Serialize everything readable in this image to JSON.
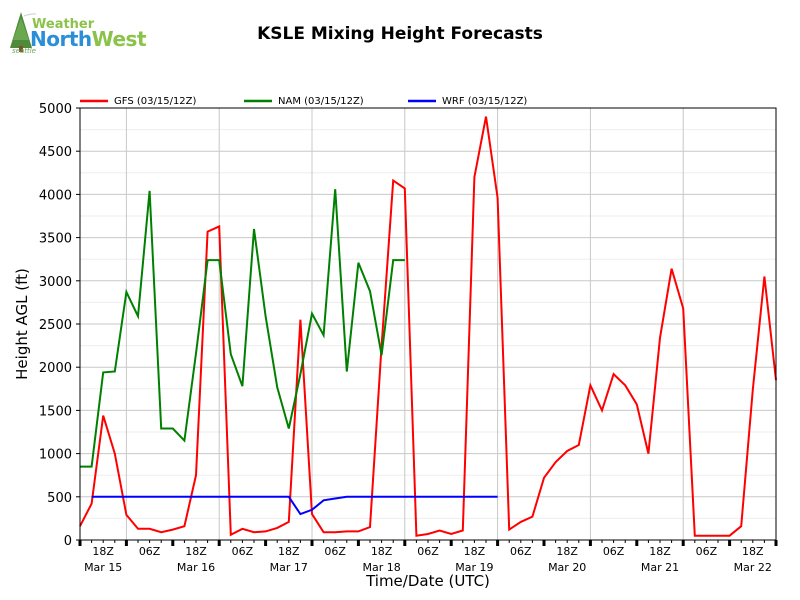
{
  "logo": {
    "word1": "Weather",
    "word2a": "North",
    "word2b": "West",
    "tagline": "seattle"
  },
  "chart_data": {
    "type": "line",
    "title": "KSLE Mixing Height Forecasts",
    "xlabel": "Time/Date (UTC)",
    "ylabel": "Height AGL (ft)",
    "ylim": [
      0,
      5000
    ],
    "yticks": [
      0,
      500,
      1000,
      1500,
      2000,
      2500,
      3000,
      3500,
      4000,
      4500,
      5000
    ],
    "xlim": [
      12,
      192
    ],
    "hour_ticks": [
      {
        "x": 18,
        "label": "18Z"
      },
      {
        "x": 30,
        "label": "06Z"
      },
      {
        "x": 42,
        "label": "18Z"
      },
      {
        "x": 54,
        "label": "06Z"
      },
      {
        "x": 66,
        "label": "18Z"
      },
      {
        "x": 78,
        "label": "06Z"
      },
      {
        "x": 90,
        "label": "18Z"
      },
      {
        "x": 102,
        "label": "06Z"
      },
      {
        "x": 114,
        "label": "18Z"
      },
      {
        "x": 126,
        "label": "06Z"
      },
      {
        "x": 138,
        "label": "18Z"
      },
      {
        "x": 150,
        "label": "06Z"
      },
      {
        "x": 162,
        "label": "18Z"
      },
      {
        "x": 174,
        "label": "06Z"
      },
      {
        "x": 186,
        "label": "18Z"
      }
    ],
    "date_labels": [
      {
        "x": 18,
        "label": "Mar 15"
      },
      {
        "x": 42,
        "label": "Mar 16"
      },
      {
        "x": 66,
        "label": "Mar 17"
      },
      {
        "x": 90,
        "label": "Mar 18"
      },
      {
        "x": 114,
        "label": "Mar 19"
      },
      {
        "x": 138,
        "label": "Mar 20"
      },
      {
        "x": 162,
        "label": "Mar 21"
      },
      {
        "x": 186,
        "label": "Mar 22"
      }
    ],
    "legend_position": "top-left",
    "series": [
      {
        "name": "GFS (03/15/12Z)",
        "color": "#ff0000",
        "x": [
          12,
          15,
          18,
          21,
          24,
          27,
          30,
          33,
          36,
          39,
          42,
          45,
          48,
          51,
          54,
          57,
          60,
          63,
          66,
          69,
          72,
          75,
          78,
          81,
          84,
          87,
          90,
          93,
          96,
          99,
          102,
          105,
          108,
          111,
          114,
          117,
          120,
          123,
          126,
          129,
          132,
          135,
          138,
          141,
          144,
          147,
          150,
          153,
          156,
          159,
          162,
          165,
          168,
          171,
          174,
          177,
          180,
          183,
          186,
          189,
          192
        ],
        "values": [
          160,
          420,
          1440,
          1000,
          290,
          130,
          130,
          90,
          120,
          160,
          750,
          3570,
          3630,
          60,
          130,
          90,
          100,
          140,
          210,
          2550,
          300,
          90,
          90,
          100,
          100,
          150,
          2250,
          4160,
          4070,
          50,
          70,
          110,
          70,
          110,
          4200,
          4900,
          3960,
          120,
          210,
          270,
          720,
          900,
          1030,
          1100,
          1790,
          1500,
          1920,
          1790,
          1570,
          1000,
          2340,
          3140,
          2680,
          50,
          50,
          50,
          50,
          160,
          1740,
          3050,
          1850
        ]
      },
      {
        "name": "NAM (03/15/12Z)",
        "color": "#008000",
        "x": [
          12,
          15,
          18,
          21,
          24,
          27,
          30,
          33,
          36,
          39,
          42,
          45,
          48,
          51,
          54,
          57,
          60,
          63,
          66,
          69,
          72,
          75,
          78,
          81,
          84,
          87,
          90,
          93,
          96
        ],
        "values": [
          850,
          850,
          1940,
          1950,
          2870,
          2590,
          4040,
          1290,
          1290,
          1150,
          2160,
          3240,
          3240,
          2150,
          1780,
          3600,
          2590,
          1770,
          1290,
          1920,
          2620,
          2370,
          4060,
          1950,
          3210,
          2880,
          2140,
          3240,
          3240
        ]
      },
      {
        "name": "WRF (03/15/12Z)",
        "color": "#0000ff",
        "x": [
          15,
          66,
          69,
          72,
          75,
          78,
          81,
          84,
          120
        ],
        "values": [
          500,
          500,
          300,
          350,
          460,
          480,
          500,
          500,
          500
        ]
      }
    ]
  }
}
